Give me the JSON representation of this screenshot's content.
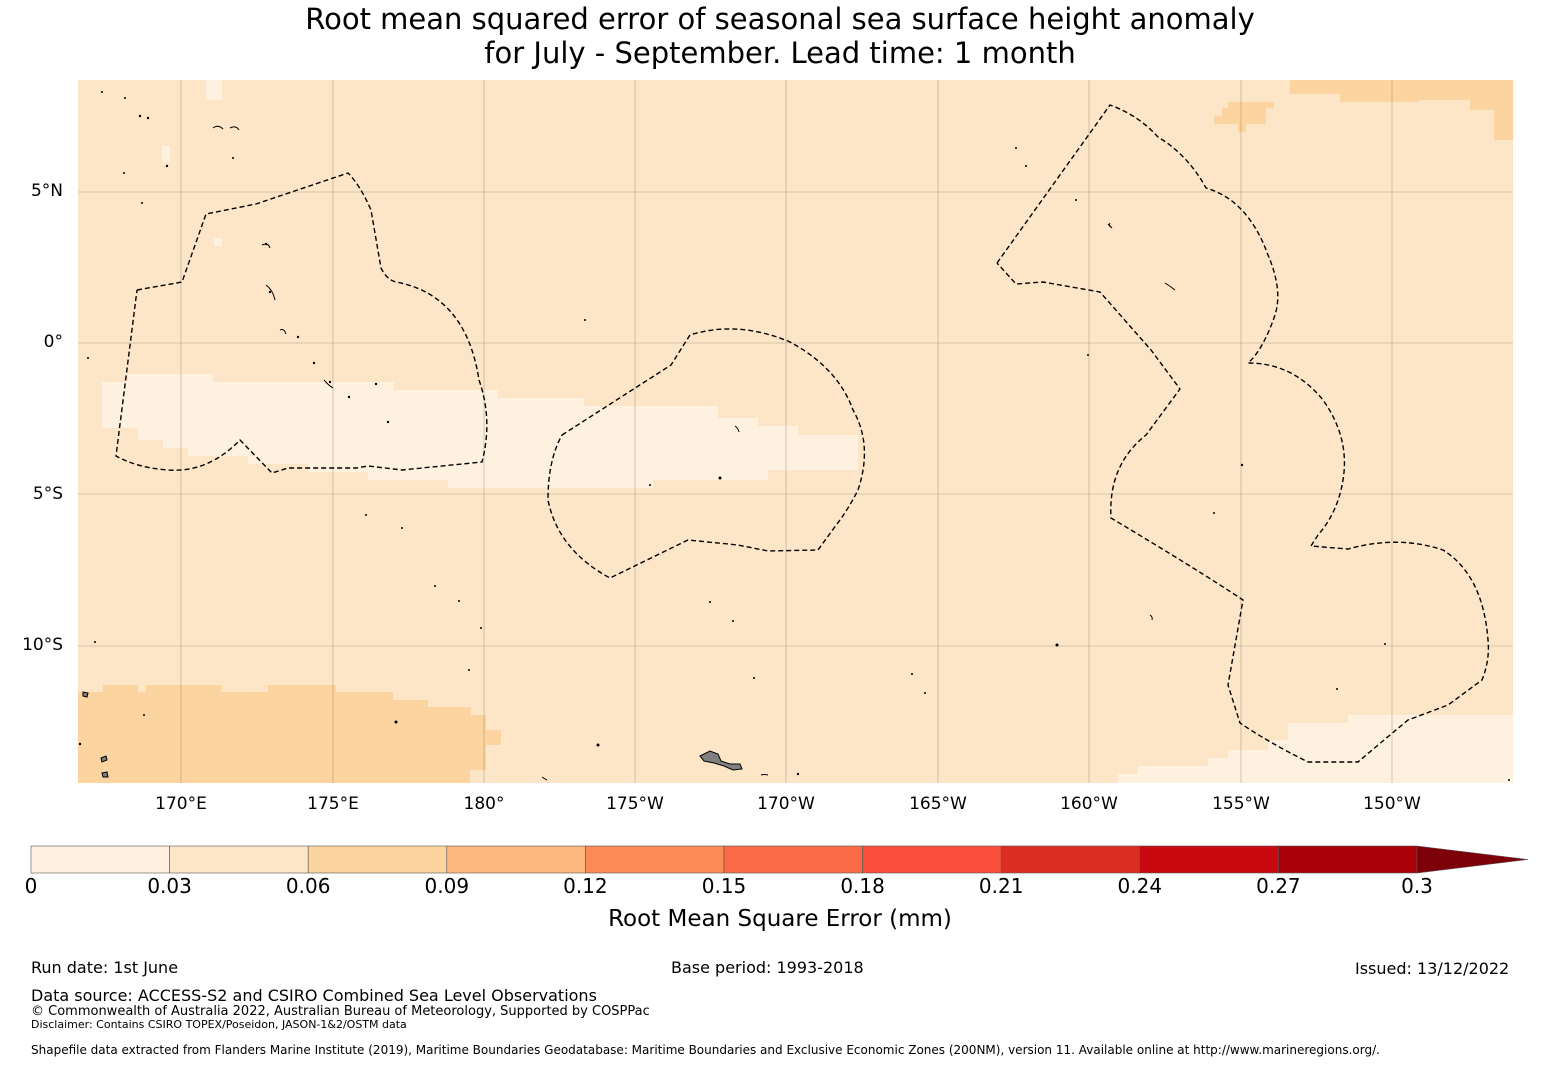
{
  "title": {
    "line1": "Root mean squared error of seasonal sea surface height anomaly",
    "line2": "for July - September. Lead time: 1 month"
  },
  "map": {
    "lat_labels": [
      "5°N",
      "0°",
      "5°S",
      "10°S"
    ],
    "lon_labels": [
      "170°E",
      "175°E",
      "180°",
      "175°W",
      "170°W",
      "165°W",
      "160°W",
      "155°W",
      "150°W"
    ],
    "field_colors": {
      "band_0_003": "#fff1df",
      "band_003_006": "#fde6c7",
      "band_006_009": "#fcd49f"
    },
    "boundary_style": "dashed black EEZ outlines",
    "land_color": "#808080"
  },
  "colorbar": {
    "label": "Root Mean Square Error (mm)",
    "ticks": [
      "0",
      "0.03",
      "0.06",
      "0.09",
      "0.12",
      "0.15",
      "0.18",
      "0.21",
      "0.24",
      "0.27",
      "0.3"
    ],
    "colors": [
      "#fff1df",
      "#fde6c7",
      "#fcd49f",
      "#fcb87f",
      "#fc8b57",
      "#fc6b47",
      "#fb4f3d",
      "#d92e21",
      "#c9090f",
      "#aa0009"
    ],
    "extend_color": "#7d0008",
    "extend": "max"
  },
  "footer": {
    "run_date": "Run date: 1st June",
    "base_period": "Base period: 1993-2018",
    "issued": "Issued: 13/12/2022",
    "data_source": "Data source: ACCESS-S2 and CSIRO Combined Sea Level Observations",
    "copyright": "© Commonwealth of Australia 2022, Australian Bureau of Meteorology, Supported by COSPPac",
    "disclaimer": "Disclaimer: Contains CSIRO TOPEX/Poseidon, JASON-1&2/OSTM data",
    "shapefile": "Shapefile data extracted from Flanders Marine Institute (2019), Maritime Boundaries Geodatabase: Maritime Boundaries and Exclusive Economic Zones (200NM), version 11. Available online at http://www.marineregions.org/."
  }
}
